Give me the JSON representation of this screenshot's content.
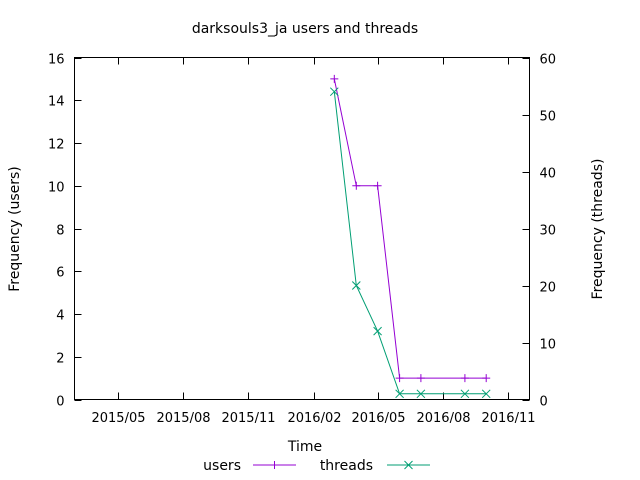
{
  "chart_data": {
    "type": "line",
    "title": "darksouls3_ja users and threads",
    "xlabel": "Time",
    "ylabel": "Frequency (users)",
    "y2label": "Frequency (threads)",
    "x_range": [
      "2015-03-01",
      "2016-12-01"
    ],
    "x_ticks": [
      {
        "date": "2015-05-01",
        "label": "2015/05"
      },
      {
        "date": "2015-08-01",
        "label": "2015/08"
      },
      {
        "date": "2015-11-01",
        "label": "2015/11"
      },
      {
        "date": "2016-02-01",
        "label": "2016/02"
      },
      {
        "date": "2016-05-01",
        "label": "2016/05"
      },
      {
        "date": "2016-08-01",
        "label": "2016/08"
      },
      {
        "date": "2016-11-01",
        "label": "2016/11"
      }
    ],
    "ylim": [
      0,
      16
    ],
    "y_ticks": [
      0,
      2,
      4,
      6,
      8,
      10,
      12,
      14,
      16
    ],
    "y2lim": [
      0,
      60
    ],
    "y2_ticks": [
      0,
      10,
      20,
      30,
      40,
      50,
      60
    ],
    "grid": false,
    "legend_position": "bottom-center",
    "series": [
      {
        "name": "users",
        "axis": "left",
        "color": "#9400d3",
        "marker": "+",
        "points": [
          {
            "x": "2016-03-01",
            "y": 15
          },
          {
            "x": "2016-04-01",
            "y": 10
          },
          {
            "x": "2016-05-01",
            "y": 10
          },
          {
            "x": "2016-06-01",
            "y": 1
          },
          {
            "x": "2016-07-01",
            "y": 1
          },
          {
            "x": "2016-09-01",
            "y": 1
          },
          {
            "x": "2016-10-01",
            "y": 1
          }
        ]
      },
      {
        "name": "threads",
        "axis": "right",
        "color": "#009e73",
        "marker": "x",
        "points": [
          {
            "x": "2016-03-01",
            "y": 54
          },
          {
            "x": "2016-04-01",
            "y": 20
          },
          {
            "x": "2016-05-01",
            "y": 12
          },
          {
            "x": "2016-06-01",
            "y": 1
          },
          {
            "x": "2016-07-01",
            "y": 1
          },
          {
            "x": "2016-09-01",
            "y": 1
          },
          {
            "x": "2016-10-01",
            "y": 1
          }
        ]
      }
    ]
  }
}
